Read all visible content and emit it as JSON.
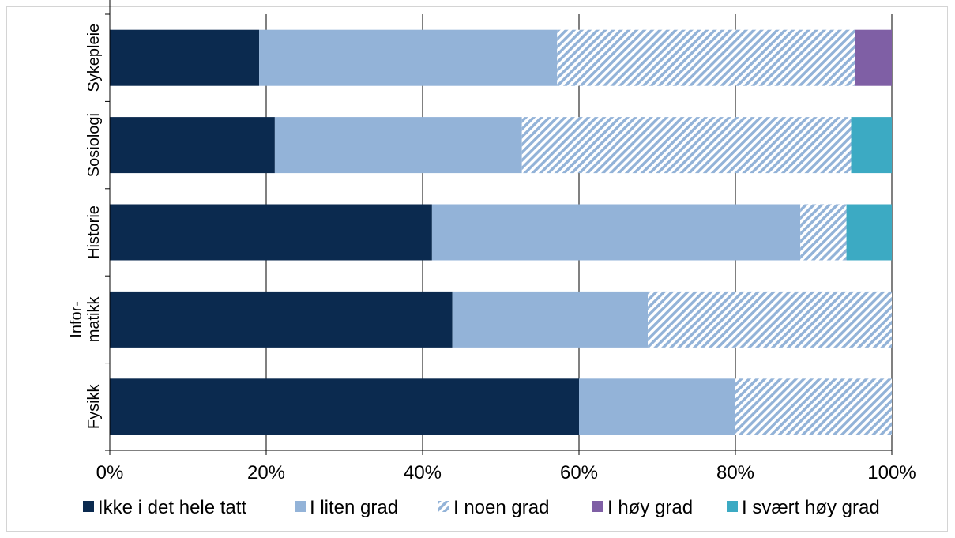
{
  "chart_data": {
    "type": "bar",
    "orientation": "horizontal",
    "stacked": "percent",
    "categories": [
      "Fysikk",
      "Infor-\nmatikk",
      "Historie",
      "Sosiologi",
      "Sykepleie"
    ],
    "series": [
      {
        "name": "Ikke i det hele tatt",
        "values": [
          60,
          43.8,
          41.2,
          21.1,
          19.1
        ],
        "color": "#0b2a4f",
        "pattern": "solid"
      },
      {
        "name": "I liten grad",
        "values": [
          20,
          25,
          47.1,
          31.6,
          38.1
        ],
        "color": "#93b3d8",
        "pattern": "solid"
      },
      {
        "name": "I noen grad",
        "values": [
          20,
          31.2,
          5.9,
          42.1,
          38.1
        ],
        "color": "#93b3d8",
        "pattern": "diagonal-hatch"
      },
      {
        "name": "I høy grad",
        "values": [
          0,
          0,
          0,
          0,
          4.7
        ],
        "color": "#7f5fa5",
        "pattern": "solid"
      },
      {
        "name": "I svært høy grad",
        "values": [
          0,
          0,
          5.8,
          5.2,
          0
        ],
        "color": "#3caac3",
        "pattern": "solid"
      }
    ],
    "xlim": [
      0,
      100
    ],
    "xticks": [
      "0%",
      "20%",
      "40%",
      "60%",
      "80%",
      "100%"
    ],
    "grid": "vertical",
    "legend": "bottom",
    "title": "",
    "xlabel": "",
    "ylabel": ""
  }
}
